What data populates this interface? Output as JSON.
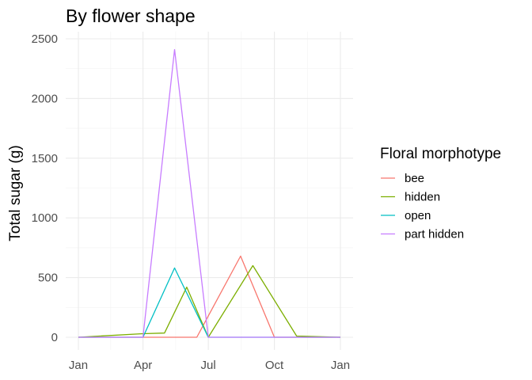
{
  "chart_data": {
    "type": "line",
    "title": "By flower shape",
    "xlabel": "",
    "ylabel": "Total sugar (g)",
    "xlim": [
      "2021-01-01",
      "2022-01-01"
    ],
    "ylim": [
      0,
      2500
    ],
    "x_ticks": [
      {
        "label": "Jan",
        "date": "2021-01-01"
      },
      {
        "label": "Apr",
        "date": "2021-04-01"
      },
      {
        "label": "Jul",
        "date": "2021-07-01"
      },
      {
        "label": "Oct",
        "date": "2021-10-01"
      },
      {
        "label": "Jan",
        "date": "2022-01-01"
      }
    ],
    "y_ticks": [
      0,
      500,
      1000,
      1500,
      2000,
      2500
    ],
    "grid": true,
    "legend": {
      "title": "Floral morphotype",
      "position": "right"
    },
    "series": [
      {
        "name": "bee",
        "color": "#F8766D",
        "points": [
          {
            "x": "2021-01-01",
            "y": 0
          },
          {
            "x": "2021-04-01",
            "y": 0
          },
          {
            "x": "2021-06-15",
            "y": 0
          },
          {
            "x": "2021-08-15",
            "y": 680
          },
          {
            "x": "2021-10-01",
            "y": 0
          },
          {
            "x": "2022-01-01",
            "y": 0
          }
        ]
      },
      {
        "name": "hidden",
        "color": "#7CAE00",
        "points": [
          {
            "x": "2021-01-01",
            "y": 0
          },
          {
            "x": "2021-04-01",
            "y": 30
          },
          {
            "x": "2021-05-01",
            "y": 35
          },
          {
            "x": "2021-06-01",
            "y": 420
          },
          {
            "x": "2021-07-01",
            "y": 0
          },
          {
            "x": "2021-09-01",
            "y": 600
          },
          {
            "x": "2021-11-01",
            "y": 10
          },
          {
            "x": "2022-01-01",
            "y": 0
          }
        ]
      },
      {
        "name": "open",
        "color": "#00BFC4",
        "points": [
          {
            "x": "2021-01-01",
            "y": 0
          },
          {
            "x": "2021-04-01",
            "y": 0
          },
          {
            "x": "2021-05-15",
            "y": 580
          },
          {
            "x": "2021-07-01",
            "y": 0
          },
          {
            "x": "2022-01-01",
            "y": 0
          }
        ]
      },
      {
        "name": "part hidden",
        "color": "#C77CFF",
        "points": [
          {
            "x": "2021-01-01",
            "y": 0
          },
          {
            "x": "2021-04-01",
            "y": 0
          },
          {
            "x": "2021-05-15",
            "y": 2410
          },
          {
            "x": "2021-07-01",
            "y": 0
          },
          {
            "x": "2022-01-01",
            "y": 0
          }
        ]
      }
    ]
  }
}
